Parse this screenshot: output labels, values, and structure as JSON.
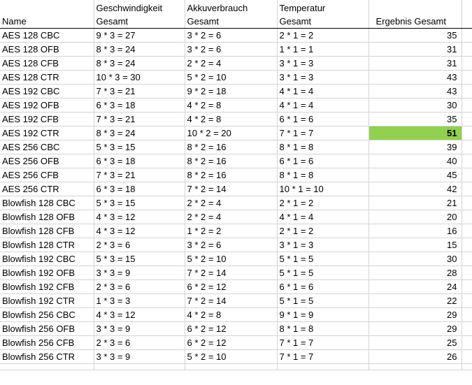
{
  "headers": {
    "name": "Name",
    "speed_1": "Geschwindigkeit",
    "speed_2": "Gesamt",
    "akku_1": "Akkuverbrauch",
    "akku_2": "Gesamt",
    "temp_1": "Temperatur",
    "temp_2": "Gesamt",
    "result": "Ergebnis Gesamt"
  },
  "highlight_color": "#92d050",
  "rows": [
    {
      "name": "AES 128 CBC",
      "speed": "9 * 3 = 27",
      "akku": "3 * 2 = 6",
      "temp": "2 * 1 = 2",
      "result": "35"
    },
    {
      "name": "AES 128 OFB",
      "speed": "8 * 3 = 24",
      "akku": "3 * 2 = 6",
      "temp": "1 * 1 = 1",
      "result": "31"
    },
    {
      "name": "AES 128 CFB",
      "speed": "8 * 3 = 24",
      "akku": "2 * 2 = 4",
      "temp": "3 * 1 = 3",
      "result": "31"
    },
    {
      "name": "AES 128 CTR",
      "speed": "10 * 3 = 30",
      "akku": "5 * 2 = 10",
      "temp": "3 * 1 = 3",
      "result": "43"
    },
    {
      "name": "AES 192 CBC",
      "speed": "7 * 3 = 21",
      "akku": "9 * 2 = 18",
      "temp": "4 * 1 = 4",
      "result": "43"
    },
    {
      "name": "AES 192 OFB",
      "speed": "6 * 3 = 18",
      "akku": "4 * 2 = 8",
      "temp": "4 * 1 = 4",
      "result": "30"
    },
    {
      "name": "AES 192 CFB",
      "speed": "7 * 3 = 21",
      "akku": "4 * 2 = 8",
      "temp": "6 * 1 = 6",
      "result": "35"
    },
    {
      "name": "AES 192 CTR",
      "speed": "8 * 3 = 24",
      "akku": "10 * 2 = 20",
      "temp": "7 * 1 = 7",
      "result": "51",
      "highlight": true
    },
    {
      "name": "AES 256 CBC",
      "speed": "5 * 3 = 15",
      "akku": "8 * 2 = 16",
      "temp": "8 * 1 = 8",
      "result": "39"
    },
    {
      "name": "AES 256 OFB",
      "speed": "6 * 3 = 18",
      "akku": "8 * 2 = 16",
      "temp": "6 * 1 = 6",
      "result": "40"
    },
    {
      "name": "AES 256 CFB",
      "speed": "7 * 3 = 21",
      "akku": "8 * 2 = 16",
      "temp": "8 * 1 = 8",
      "result": "45"
    },
    {
      "name": "AES 256 CTR",
      "speed": "6 * 3 = 18",
      "akku": "7 * 2 = 14",
      "temp": "10 * 1 = 10",
      "result": "42"
    },
    {
      "name": "Blowfish 128 CBC",
      "speed": "5 * 3 = 15",
      "akku": "2 * 2 = 4",
      "temp": "2 * 1 = 2",
      "result": "21"
    },
    {
      "name": "Blowfish 128 OFB",
      "speed": "4 * 3 = 12",
      "akku": "2 * 2 = 4",
      "temp": "4 * 1 = 4",
      "result": "20"
    },
    {
      "name": "Blowfish 128 CFB",
      "speed": "4 * 3 = 12",
      "akku": "1 * 2 = 2",
      "temp": "2 * 1 = 2",
      "result": "16"
    },
    {
      "name": "Blowfish 128 CTR",
      "speed": "2 * 3 = 6",
      "akku": "3 * 2 = 6",
      "temp": "3 * 1 = 3",
      "result": "15"
    },
    {
      "name": "Blowfish 192 CBC",
      "speed": "5 * 3 = 15",
      "akku": "5 * 2 = 10",
      "temp": "5 * 1 = 5",
      "result": "30"
    },
    {
      "name": "Blowfish 192 OFB",
      "speed": "3 * 3 = 9",
      "akku": "7 * 2 = 14",
      "temp": "5 * 1 = 5",
      "result": "28"
    },
    {
      "name": "Blowfish 192 CFB",
      "speed": "2 * 3 = 6",
      "akku": "6 * 2 = 12",
      "temp": "6 * 1 = 6",
      "result": "24"
    },
    {
      "name": "Blowfish 192 CTR",
      "speed": "1 * 3 = 3",
      "akku": "7 * 2 = 14",
      "temp": "5 * 1 = 5",
      "result": "22"
    },
    {
      "name": "Blowfish 256 CBC",
      "speed": "4 * 3 = 12",
      "akku": "4 * 2 = 8",
      "temp": "9 * 1 = 9",
      "result": "29"
    },
    {
      "name": "Blowfish 256 OFB",
      "speed": "3 * 3 = 9",
      "akku": "6 * 2 = 12",
      "temp": "8 * 1 = 8",
      "result": "29"
    },
    {
      "name": "Blowfish 256 CFB",
      "speed": "2 * 3 = 6",
      "akku": "6 * 2 = 12",
      "temp": "7 * 1 = 7",
      "result": "25"
    },
    {
      "name": "Blowfish 256 CTR",
      "speed": "3 * 3 = 9",
      "akku": "5 * 2 = 10",
      "temp": "7 * 1 = 7",
      "result": "26"
    }
  ]
}
